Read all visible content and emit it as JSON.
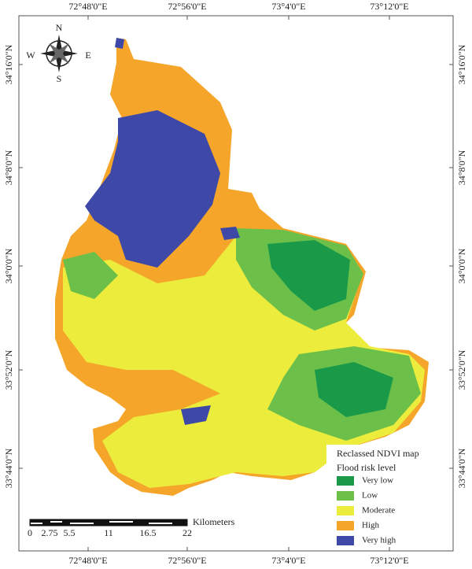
{
  "coordinates": {
    "top": [
      "72°48'0\"E",
      "72°56'0\"E",
      "73°4'0\"E",
      "73°12'0\"E"
    ],
    "bottom": [
      "72°48'0\"E",
      "72°56'0\"E",
      "73°4'0\"E",
      "73°12'0\"E"
    ],
    "left": [
      "34°16'0\"N",
      "34°8'0\"N",
      "34°0'0\"N",
      "33°52'0\"N",
      "33°44'0\"N"
    ],
    "right": [
      "34°16'0\"N",
      "34°8'0\"N",
      "34°0'0\"N",
      "33°52'0\"N",
      "33°44'0\"N"
    ]
  },
  "compass": {
    "north": "N",
    "south": "S",
    "east": "E",
    "west": "W"
  },
  "scale_bar": {
    "unit": "Kilometers",
    "ticks": [
      0,
      2.75,
      5.5,
      11,
      16.5,
      22
    ]
  },
  "legend": {
    "title": "Reclassed NDVI map",
    "subtitle": "Flood risk level",
    "items": [
      {
        "label": "Very low",
        "color": "#1a9a48"
      },
      {
        "label": "Low",
        "color": "#6cc04a"
      },
      {
        "label": "Moderate",
        "color": "#ecec3c"
      },
      {
        "label": "High",
        "color": "#f5a52a"
      },
      {
        "label": "Very high",
        "color": "#3e48a6"
      }
    ]
  }
}
